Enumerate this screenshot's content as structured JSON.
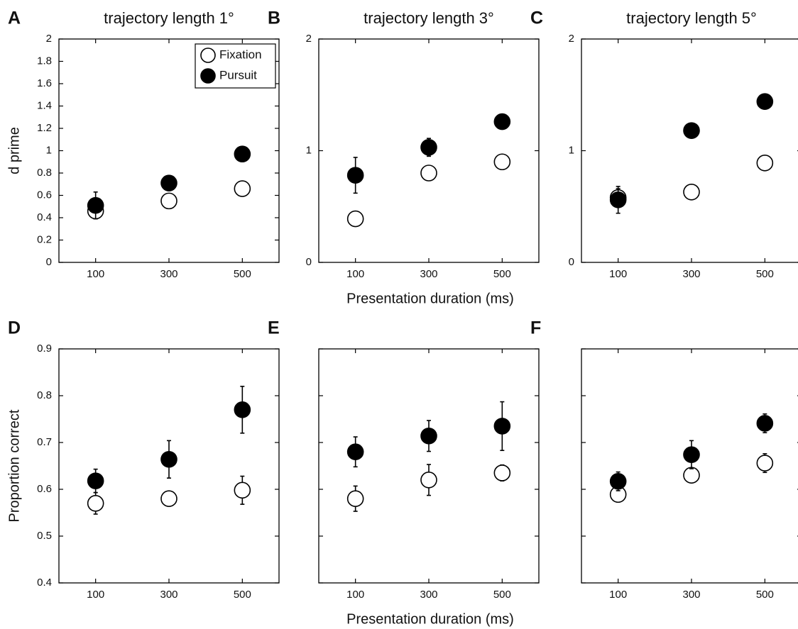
{
  "chart_data": [
    {
      "type": "scatter",
      "panel_label": "A",
      "title": "trajectory length 1°",
      "ylabel": "d prime",
      "x": [
        100,
        300,
        500
      ],
      "xlim": [
        0,
        600
      ],
      "xticks": [
        100,
        300,
        500
      ],
      "ylim": [
        0,
        2
      ],
      "yticks": [
        0,
        0.2,
        0.4,
        0.6,
        0.8,
        1,
        1.2,
        1.4,
        1.6,
        1.8,
        2
      ],
      "show_ytick_labels": true,
      "legend": "upper right",
      "series": [
        {
          "name": "Fixation",
          "color": "#000000",
          "fill": "#ffffff",
          "values": [
            0.46,
            0.55,
            0.66
          ],
          "errors": [
            0.07,
            0.02,
            0.02
          ]
        },
        {
          "name": "Pursuit",
          "color": "#000000",
          "fill": "#000000",
          "values": [
            0.51,
            0.71,
            0.97
          ],
          "errors": [
            0.12,
            0.02,
            0.02
          ]
        }
      ]
    },
    {
      "type": "scatter",
      "panel_label": "B",
      "title": "trajectory length 3°",
      "xlabel": "Presentation duration (ms)",
      "x": [
        100,
        300,
        500
      ],
      "xlim": [
        0,
        600
      ],
      "xticks": [
        100,
        300,
        500
      ],
      "ylim": [
        0,
        2
      ],
      "yticks": [
        0,
        1,
        2
      ],
      "show_ytick_labels": true,
      "series": [
        {
          "name": "Fixation",
          "color": "#000000",
          "fill": "#ffffff",
          "values": [
            0.39,
            0.8,
            0.9
          ],
          "errors": [
            0.02,
            0.02,
            0.02
          ]
        },
        {
          "name": "Pursuit",
          "color": "#000000",
          "fill": "#000000",
          "values": [
            0.78,
            1.03,
            1.26
          ],
          "errors": [
            0.16,
            0.08,
            0.02
          ]
        }
      ]
    },
    {
      "type": "scatter",
      "panel_label": "C",
      "title": "trajectory length 5°",
      "x": [
        100,
        300,
        500
      ],
      "xlim": [
        0,
        600
      ],
      "xticks": [
        100,
        300,
        500
      ],
      "ylim": [
        0,
        2
      ],
      "yticks": [
        0,
        1,
        2
      ],
      "show_ytick_labels": true,
      "series": [
        {
          "name": "Fixation",
          "color": "#000000",
          "fill": "#ffffff",
          "values": [
            0.58,
            0.63,
            0.89
          ],
          "errors": [
            0.08,
            0.02,
            0.05
          ]
        },
        {
          "name": "Pursuit",
          "color": "#000000",
          "fill": "#000000",
          "values": [
            0.56,
            1.18,
            1.44
          ],
          "errors": [
            0.12,
            0.03,
            0.06
          ]
        }
      ]
    },
    {
      "type": "scatter",
      "panel_label": "D",
      "ylabel": "Proportion correct",
      "x": [
        100,
        300,
        500
      ],
      "xlim": [
        0,
        600
      ],
      "xticks": [
        100,
        300,
        500
      ],
      "ylim": [
        0.4,
        0.9
      ],
      "yticks": [
        0.4,
        0.5,
        0.6,
        0.7,
        0.8,
        0.9
      ],
      "show_ytick_labels": true,
      "series": [
        {
          "name": "Fixation",
          "color": "#000000",
          "fill": "#ffffff",
          "values": [
            0.57,
            0.58,
            0.598
          ],
          "errors": [
            0.023,
            0.01,
            0.03
          ]
        },
        {
          "name": "Pursuit",
          "color": "#000000",
          "fill": "#000000",
          "values": [
            0.618,
            0.664,
            0.77
          ],
          "errors": [
            0.025,
            0.04,
            0.05
          ]
        }
      ]
    },
    {
      "type": "scatter",
      "panel_label": "E",
      "xlabel": "Presentation duration (ms)",
      "x": [
        100,
        300,
        500
      ],
      "xlim": [
        0,
        600
      ],
      "xticks": [
        100,
        300,
        500
      ],
      "ylim": [
        0.4,
        0.9
      ],
      "yticks": [
        0.4,
        0.5,
        0.6,
        0.7,
        0.8,
        0.9
      ],
      "show_ytick_labels": false,
      "series": [
        {
          "name": "Fixation",
          "color": "#000000",
          "fill": "#ffffff",
          "values": [
            0.58,
            0.62,
            0.635
          ],
          "errors": [
            0.027,
            0.033,
            0.017
          ]
        },
        {
          "name": "Pursuit",
          "color": "#000000",
          "fill": "#000000",
          "values": [
            0.68,
            0.714,
            0.735
          ],
          "errors": [
            0.032,
            0.033,
            0.052
          ]
        }
      ]
    },
    {
      "type": "scatter",
      "panel_label": "F",
      "x": [
        100,
        300,
        500
      ],
      "xlim": [
        0,
        600
      ],
      "xticks": [
        100,
        300,
        500
      ],
      "ylim": [
        0.4,
        0.9
      ],
      "yticks": [
        0.4,
        0.5,
        0.6,
        0.7,
        0.8,
        0.9
      ],
      "show_ytick_labels": false,
      "series": [
        {
          "name": "Fixation",
          "color": "#000000",
          "fill": "#ffffff",
          "values": [
            0.589,
            0.63,
            0.656
          ],
          "errors": [
            0.01,
            0.01,
            0.02
          ]
        },
        {
          "name": "Pursuit",
          "color": "#000000",
          "fill": "#000000",
          "values": [
            0.617,
            0.674,
            0.741
          ],
          "errors": [
            0.02,
            0.03,
            0.02
          ]
        }
      ]
    }
  ]
}
